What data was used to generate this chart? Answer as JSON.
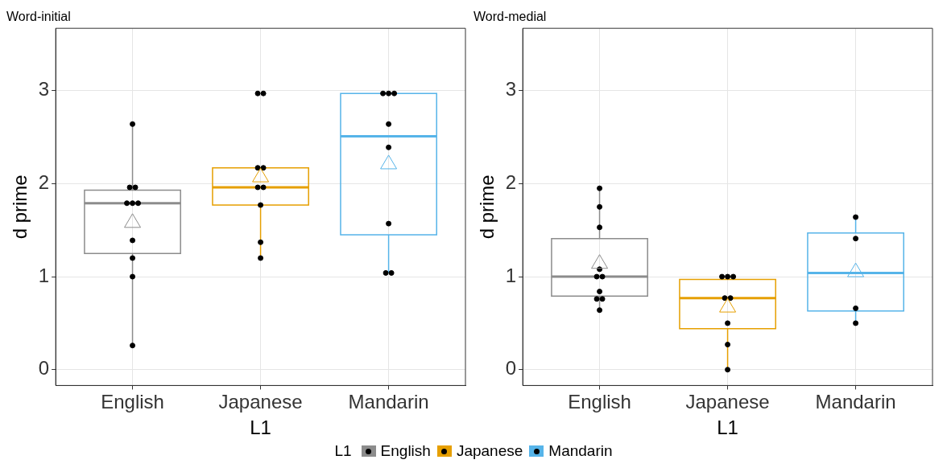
{
  "chart_data": [
    {
      "type": "box",
      "title": "Word-initial",
      "xlabel": "L1",
      "ylabel": "d prime",
      "legend": "bottom",
      "legend_title": "L1",
      "grid": true,
      "categories": [
        "English",
        "Japanese",
        "Mandarin"
      ],
      "ylim": [
        -0.17,
        3.67
      ],
      "yticks": [
        0,
        1,
        2,
        3
      ],
      "series": [
        {
          "name": "English",
          "color": "#8c8c8c",
          "boxes": [
            {
              "low": 0.26,
              "q1": 1.25,
              "median": 1.79,
              "q3": 1.93,
              "high": 2.64,
              "mean": 1.59
            },
            null,
            null
          ]
        },
        {
          "name": "Japanese",
          "color": "#e69f00",
          "boxes": [
            null,
            {
              "low": 1.2,
              "q1": 1.77,
              "median": 1.96,
              "q3": 2.17,
              "high": 2.17,
              "mean": 2.08
            },
            null
          ]
        },
        {
          "name": "Mandarin",
          "color": "#56b4e9",
          "boxes": [
            null,
            null,
            {
              "low": 1.04,
              "q1": 1.45,
              "median": 2.51,
              "q3": 2.97,
              "high": 2.97,
              "mean": 2.22
            }
          ]
        },
        {
          "type": "scatter",
          "color": "#000000",
          "x": [
            "English",
            "English",
            "English",
            "English",
            "English",
            "English",
            "English",
            "English",
            "English",
            "English"
          ],
          "values": [
            2.64,
            1.96,
            1.96,
            1.79,
            1.79,
            1.79,
            1.39,
            1.2,
            1.0,
            0.26
          ]
        },
        {
          "type": "scatter",
          "color": "#000000",
          "x": [
            "Japanese",
            "Japanese",
            "Japanese",
            "Japanese",
            "Japanese",
            "Japanese",
            "Japanese",
            "Japanese",
            "Japanese"
          ],
          "values": [
            2.97,
            2.97,
            2.17,
            2.17,
            1.96,
            1.96,
            1.77,
            1.37,
            1.2
          ]
        },
        {
          "type": "scatter",
          "color": "#000000",
          "x": [
            "Mandarin",
            "Mandarin",
            "Mandarin",
            "Mandarin",
            "Mandarin",
            "Mandarin",
            "Mandarin",
            "Mandarin"
          ],
          "values": [
            2.97,
            2.97,
            2.97,
            2.64,
            2.39,
            1.57,
            1.04,
            1.04
          ]
        }
      ]
    },
    {
      "type": "box",
      "title": "Word-medial",
      "xlabel": "L1",
      "ylabel": "d prime",
      "grid": true,
      "categories": [
        "English",
        "Japanese",
        "Mandarin"
      ],
      "ylim": [
        -0.17,
        3.67
      ],
      "yticks": [
        0,
        1,
        2,
        3
      ],
      "series": [
        {
          "color": "#8c8c8c",
          "boxes": [
            {
              "low": 0.64,
              "q1": 0.79,
              "median": 1.0,
              "q3": 1.41,
              "high": 1.95,
              "mean": 1.15
            },
            null,
            null
          ]
        },
        {
          "color": "#e69f00",
          "boxes": [
            null,
            {
              "low": 0.0,
              "q1": 0.44,
              "median": 0.77,
              "q3": 0.97,
              "high": 1.0,
              "mean": 0.68
            },
            null
          ]
        },
        {
          "color": "#56b4e9",
          "boxes": [
            null,
            null,
            {
              "low": 0.5,
              "q1": 0.63,
              "median": 1.04,
              "q3": 1.47,
              "high": 1.64,
              "mean": 1.06
            }
          ]
        },
        {
          "type": "scatter",
          "color": "#000000",
          "x": [
            "English",
            "English",
            "English",
            "English",
            "English",
            "English",
            "English",
            "English",
            "English",
            "English"
          ],
          "values": [
            1.95,
            1.75,
            1.53,
            1.08,
            1.0,
            1.0,
            0.84,
            0.76,
            0.76,
            0.64
          ]
        },
        {
          "type": "scatter",
          "color": "#000000",
          "x": [
            "Japanese",
            "Japanese",
            "Japanese",
            "Japanese",
            "Japanese",
            "Japanese",
            "Japanese",
            "Japanese"
          ],
          "values": [
            1.0,
            1.0,
            1.0,
            0.77,
            0.77,
            0.5,
            0.27,
            0.0
          ]
        },
        {
          "type": "scatter",
          "color": "#000000",
          "x": [
            "Mandarin",
            "Mandarin",
            "Mandarin",
            "Mandarin"
          ],
          "values": [
            1.64,
            1.41,
            0.66,
            0.5
          ]
        }
      ]
    }
  ]
}
